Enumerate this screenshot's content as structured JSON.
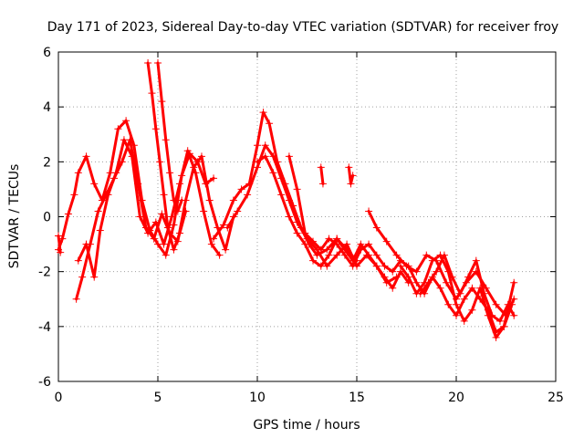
{
  "chart_data": {
    "type": "scatter",
    "title": "Day 171 of 2023, Sidereal Day-to-day VTEC variation (SDTVAR) for receiver froy",
    "xlabel": "GPS time / hours",
    "ylabel": "SDTVAR / TECUs",
    "xlim": [
      0,
      25
    ],
    "ylim": [
      -6,
      6
    ],
    "xticks": [
      0,
      5,
      10,
      15,
      20,
      25
    ],
    "yticks": [
      -6,
      -4,
      -2,
      0,
      2,
      4,
      6
    ],
    "grid": true,
    "marker": "+",
    "color": "#ff0000",
    "series": [
      {
        "name": "s1",
        "x": [
          0.0,
          0.2,
          0.5,
          0.8,
          1.0,
          1.4,
          1.8,
          2.2,
          2.6,
          3.0,
          3.4,
          3.8,
          4.2,
          4.6,
          5.0,
          5.4,
          5.8,
          6.2,
          6.6,
          7.0,
          7.4,
          7.8
        ],
        "y": [
          -1.2,
          -0.8,
          0.1,
          0.8,
          1.6,
          2.2,
          1.2,
          0.6,
          1.6,
          3.2,
          3.5,
          2.6,
          0.6,
          -0.5,
          -1.0,
          -1.4,
          -0.3,
          1.5,
          2.3,
          2.0,
          1.2,
          1.4
        ]
      },
      {
        "name": "s2",
        "x": [
          0.9,
          1.2,
          1.6,
          2.0,
          2.4,
          2.8,
          3.2,
          3.6,
          4.0,
          4.4,
          4.8,
          5.2,
          5.6,
          6.0,
          6.4,
          6.8,
          7.2,
          7.6,
          8.0,
          8.4,
          8.8
        ],
        "y": [
          -3.0,
          -2.2,
          -1.0,
          0.2,
          0.8,
          1.4,
          2.0,
          2.8,
          1.2,
          -0.4,
          -0.8,
          0.1,
          -0.6,
          -0.9,
          0.6,
          1.8,
          2.2,
          0.6,
          -0.4,
          -1.2,
          0.0
        ]
      },
      {
        "name": "s3",
        "x": [
          1.0,
          1.4,
          1.8,
          2.1,
          2.5,
          2.9,
          3.3,
          3.7,
          4.1,
          4.5,
          4.9,
          5.3,
          5.7,
          6.1,
          6.5,
          6.9,
          7.3,
          7.7,
          8.1
        ],
        "y": [
          -1.6,
          -1.0,
          -2.2,
          -0.5,
          0.8,
          1.6,
          2.8,
          2.2,
          0.0,
          -0.6,
          -0.2,
          -1.0,
          0.0,
          1.2,
          2.4,
          1.6,
          0.2,
          -1.0,
          -1.4
        ]
      },
      {
        "name": "s4",
        "x": [
          4.5,
          4.7,
          4.9,
          5.1,
          5.3,
          5.5,
          5.8,
          6.1,
          6.4
        ],
        "y": [
          5.6,
          4.5,
          3.2,
          2.0,
          0.8,
          -0.4,
          -1.2,
          -0.6,
          0.2
        ]
      },
      {
        "name": "s5",
        "x": [
          5.0,
          5.2,
          5.4,
          5.6,
          5.8,
          6.0,
          6.2
        ],
        "y": [
          5.6,
          4.2,
          2.8,
          1.6,
          0.6,
          0.2,
          0.6
        ]
      },
      {
        "name": "s6",
        "x": [
          7.8,
          8.3,
          8.8,
          9.2,
          9.6,
          10.0,
          10.3,
          10.6,
          11.0,
          11.4,
          11.8,
          12.2,
          12.6,
          13.0,
          13.5,
          14.0,
          14.5,
          15.0
        ],
        "y": [
          -0.8,
          -0.3,
          0.6,
          1.0,
          1.2,
          2.6,
          3.8,
          3.4,
          2.0,
          1.2,
          0.4,
          -0.4,
          -1.0,
          -1.4,
          -1.2,
          -0.8,
          -1.2,
          -1.6
        ]
      },
      {
        "name": "s7",
        "x": [
          8.5,
          9.0,
          9.5,
          10.0,
          10.4,
          10.8,
          11.2,
          11.6,
          12.0,
          12.5,
          13.0,
          13.5,
          14.0,
          14.5,
          15.0,
          15.5,
          16.0,
          16.5,
          17.0
        ],
        "y": [
          -0.4,
          0.2,
          0.8,
          1.8,
          2.6,
          2.2,
          1.4,
          0.6,
          -0.2,
          -0.8,
          -1.2,
          -1.8,
          -1.4,
          -1.0,
          -1.8,
          -1.4,
          -1.8,
          -2.4,
          -2.2
        ]
      },
      {
        "name": "s8",
        "x": [
          10.0,
          10.4,
          10.8,
          11.2,
          11.6,
          12.0,
          12.4,
          12.8,
          13.2,
          13.6,
          14.0,
          14.4,
          14.8,
          15.2,
          15.6,
          16.0,
          16.4,
          16.8,
          17.2,
          17.6
        ],
        "y": [
          2.0,
          2.2,
          1.6,
          0.8,
          0.0,
          -0.6,
          -1.0,
          -1.6,
          -1.8,
          -1.4,
          -0.8,
          -1.2,
          -1.6,
          -1.0,
          -1.4,
          -1.8,
          -2.2,
          -2.6,
          -2.0,
          -2.4
        ]
      },
      {
        "name": "s9",
        "x": [
          11.6,
          12.0,
          12.4,
          12.8,
          13.2,
          13.6,
          14.0,
          14.4,
          14.8,
          15.2,
          15.6,
          16.0,
          16.4,
          16.8,
          17.2,
          17.6,
          18.0,
          18.4,
          18.8,
          19.2,
          19.6,
          20.0,
          20.4,
          20.8,
          21.2,
          21.6,
          22.0,
          22.4,
          22.8
        ],
        "y": [
          2.2,
          1.0,
          -0.6,
          -0.9,
          -1.2,
          -0.8,
          -1.0,
          -1.4,
          -1.8,
          -1.2,
          -1.0,
          -1.4,
          -1.8,
          -2.0,
          -1.6,
          -1.8,
          -2.4,
          -2.8,
          -2.2,
          -2.6,
          -3.2,
          -3.6,
          -3.0,
          -2.6,
          -3.0,
          -3.4,
          -4.2,
          -4.0,
          -3.2
        ]
      },
      {
        "name": "s10",
        "x": [
          15.6,
          16.0,
          16.5,
          17.0,
          17.5,
          18.0,
          18.5,
          19.0,
          19.5,
          20.0,
          20.5,
          21.0,
          21.5,
          22.0,
          22.5,
          22.9
        ],
        "y": [
          0.2,
          -0.4,
          -0.9,
          -1.4,
          -1.8,
          -2.0,
          -1.4,
          -1.6,
          -2.4,
          -3.0,
          -2.4,
          -2.0,
          -2.6,
          -3.2,
          -3.6,
          -3.0
        ]
      },
      {
        "name": "s11",
        "x": [
          17.2,
          17.6,
          18.0,
          18.4,
          18.8,
          19.2,
          19.6,
          20.0,
          20.4,
          20.8,
          21.2,
          21.6,
          22.0,
          22.4,
          22.9
        ],
        "y": [
          -1.8,
          -2.2,
          -2.8,
          -2.4,
          -1.6,
          -1.4,
          -2.0,
          -3.2,
          -3.8,
          -3.4,
          -2.6,
          -3.6,
          -4.4,
          -4.0,
          -2.4
        ]
      },
      {
        "name": "s12",
        "x": [
          18.2,
          18.6,
          19.0,
          19.4,
          19.8,
          20.2,
          20.6,
          21.0,
          21.4,
          21.8,
          22.2,
          22.6,
          22.9
        ],
        "y": [
          -2.8,
          -2.4,
          -2.0,
          -1.4,
          -2.2,
          -2.8,
          -2.2,
          -1.6,
          -2.8,
          -3.6,
          -3.8,
          -3.2,
          -3.6
        ]
      },
      {
        "name": "s13",
        "x": [
          14.6,
          14.7,
          14.8
        ],
        "y": [
          1.8,
          1.2,
          1.5
        ]
      },
      {
        "name": "s14",
        "x": [
          13.2,
          13.3
        ],
        "y": [
          1.8,
          1.2
        ]
      },
      {
        "name": "s15",
        "x": [
          0.0,
          0.1
        ],
        "y": [
          -0.7,
          -1.3
        ]
      }
    ]
  }
}
